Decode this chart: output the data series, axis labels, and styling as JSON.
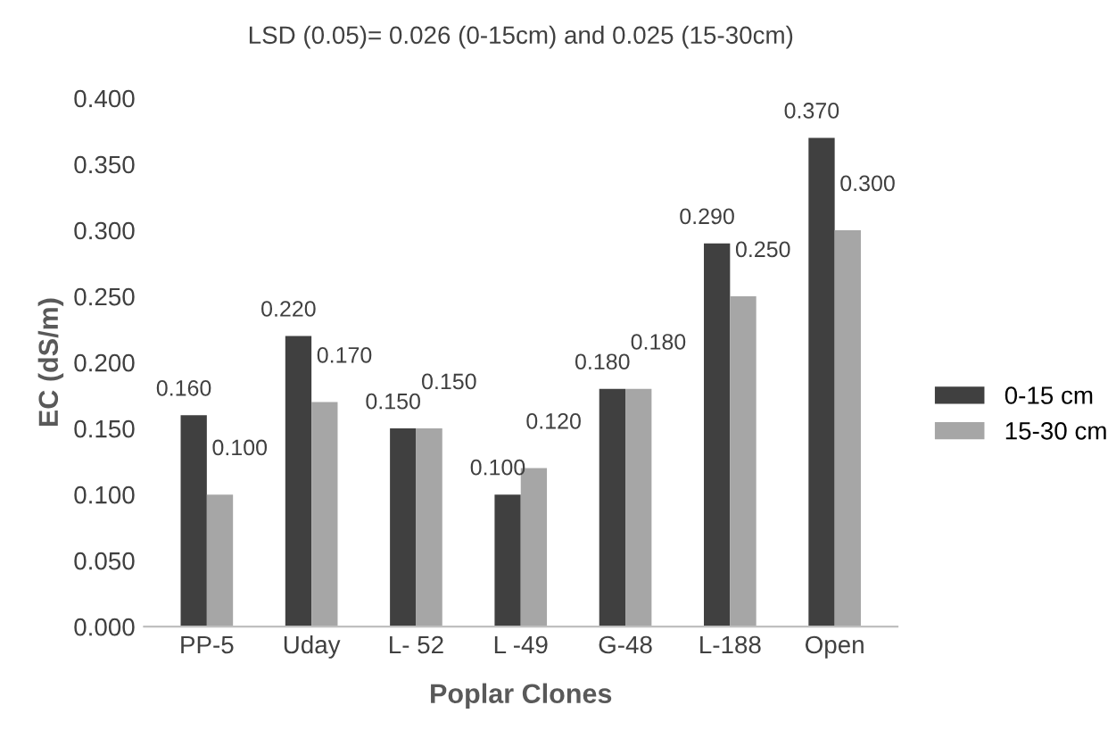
{
  "chart_data": {
    "type": "bar",
    "title": "LSD (0.05)= 0.026 (0-15cm) and 0.025 (15-30cm)",
    "xlabel": "Poplar Clones",
    "ylabel": "EC (dS/m)",
    "categories": [
      "PP-5",
      "Uday",
      "L- 52",
      "L -49",
      "G-48",
      "L-188",
      "Open"
    ],
    "series": [
      {
        "name": "0-15 cm",
        "color": "#404040",
        "values": [
          0.16,
          0.22,
          0.15,
          0.1,
          0.18,
          0.29,
          0.37
        ],
        "value_labels": [
          "0.160",
          "0.220",
          "0.150",
          "0.100",
          "0.180",
          "0.290",
          "0.370"
        ]
      },
      {
        "name": "15-30 cm",
        "color": "#a6a6a6",
        "values": [
          0.1,
          0.17,
          0.15,
          0.12,
          0.18,
          0.25,
          0.3
        ],
        "value_labels": [
          "0.100",
          "0.170",
          "0.150",
          "0.120",
          "0.180",
          "0.250",
          "0.300"
        ]
      }
    ],
    "ylim": [
      0,
      0.4
    ],
    "yticks": [
      {
        "value": 0,
        "label": "0.000"
      },
      {
        "value": 0.05,
        "label": "0.050"
      },
      {
        "value": 0.1,
        "label": "0.100"
      },
      {
        "value": 0.15,
        "label": "0.150"
      },
      {
        "value": 0.2,
        "label": "0.200"
      },
      {
        "value": 0.25,
        "label": "0.250"
      },
      {
        "value": 0.3,
        "label": "0.300"
      },
      {
        "value": 0.35,
        "label": "0.350"
      },
      {
        "value": 0.4,
        "label": "0.400"
      }
    ],
    "grid": false,
    "legend": "right"
  }
}
